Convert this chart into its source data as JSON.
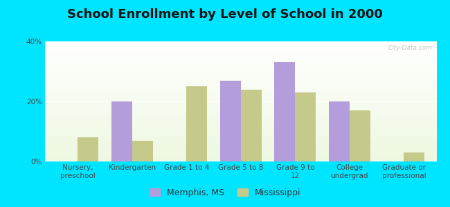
{
  "title": "School Enrollment by Level of School in 2000",
  "categories": [
    "Nursery,\npreschool",
    "Kindergarten",
    "Grade 1 to 4",
    "Grade 5 to 8",
    "Grade 9 to\n12",
    "College\nundergrad",
    "Graduate or\nprofessional"
  ],
  "memphis_values": [
    0,
    20,
    0,
    27,
    33,
    20,
    0
  ],
  "mississippi_values": [
    8,
    7,
    25,
    24,
    23,
    17,
    3
  ],
  "memphis_color": "#b39ddb",
  "mississippi_color": "#c5c98a",
  "background_color": "#00e5ff",
  "ylim": [
    0,
    40
  ],
  "yticks": [
    0,
    20,
    40
  ],
  "ytick_labels": [
    "0%",
    "20%",
    "40%"
  ],
  "title_fontsize": 13,
  "tick_fontsize": 7.5,
  "legend_fontsize": 9,
  "bar_width": 0.38,
  "watermark": "City-Data.com"
}
